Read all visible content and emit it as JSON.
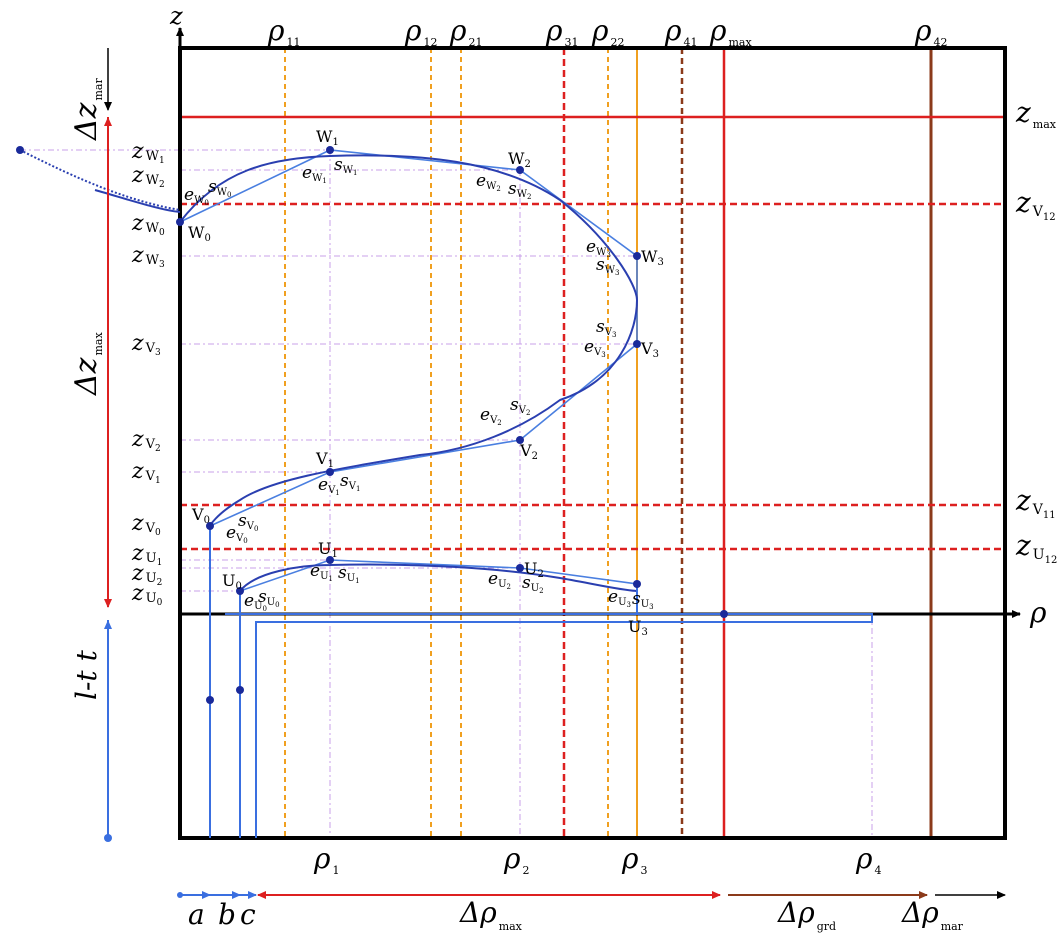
{
  "axes": {
    "z_label": "z",
    "rho_label": "ρ"
  },
  "vertical_lines": [
    {
      "id": "rho11",
      "label": "ρ",
      "sub": "11",
      "style": "dashed",
      "color": "#f0a020"
    },
    {
      "id": "rho12",
      "label": "ρ",
      "sub": "12",
      "style": "dashed",
      "color": "#f0a020"
    },
    {
      "id": "rho21",
      "label": "ρ",
      "sub": "21",
      "style": "dashed",
      "color": "#f0a020"
    },
    {
      "id": "rho31",
      "label": "ρ",
      "sub": "31",
      "style": "dashed",
      "color": "#dd2020"
    },
    {
      "id": "rho22",
      "label": "ρ",
      "sub": "22",
      "style": "dashed",
      "color": "#f0a020"
    },
    {
      "id": "rho41",
      "label": "ρ",
      "sub": "41",
      "style": "dashed",
      "color": "#8b3a1a"
    },
    {
      "id": "rhomax",
      "label": "ρ",
      "sub": "max",
      "style": "solid",
      "color": "#dd2020"
    },
    {
      "id": "rho42",
      "label": "ρ",
      "sub": "42",
      "style": "solid",
      "color": "#8b3a1a"
    }
  ],
  "horizontal_lines": [
    {
      "id": "zmax",
      "label": "z",
      "sub": "max",
      "style": "solid",
      "color": "#dd2020"
    },
    {
      "id": "zV12",
      "label": "z",
      "sub": "V",
      "subsub": "12",
      "style": "dashed",
      "color": "#dd2020"
    },
    {
      "id": "zV11",
      "label": "z",
      "sub": "V",
      "subsub": "11",
      "style": "dashed",
      "color": "#dd2020"
    },
    {
      "id": "zU12",
      "label": "z",
      "sub": "U",
      "subsub": "12",
      "style": "dashed",
      "color": "#dd2020"
    }
  ],
  "bottom_rho_labels": [
    {
      "label": "ρ",
      "sub": "1"
    },
    {
      "label": "ρ",
      "sub": "2"
    },
    {
      "label": "ρ",
      "sub": "3"
    },
    {
      "label": "ρ",
      "sub": "4"
    }
  ],
  "left_z_labels": [
    {
      "label": "z",
      "sub": "W",
      "subsub": "1"
    },
    {
      "label": "z",
      "sub": "W",
      "subsub": "2"
    },
    {
      "label": "z",
      "sub": "W",
      "subsub": "0"
    },
    {
      "label": "z",
      "sub": "W",
      "subsub": "3"
    },
    {
      "label": "z",
      "sub": "V",
      "subsub": "3"
    },
    {
      "label": "z",
      "sub": "V",
      "subsub": "2"
    },
    {
      "label": "z",
      "sub": "V",
      "subsub": "1"
    },
    {
      "label": "z",
      "sub": "V",
      "subsub": "0"
    },
    {
      "label": "z",
      "sub": "U",
      "subsub": "1"
    },
    {
      "label": "z",
      "sub": "U",
      "subsub": "2"
    },
    {
      "label": "z",
      "sub": "U",
      "subsub": "0"
    }
  ],
  "points": {
    "W": [
      "W",
      "W",
      "W",
      "W"
    ],
    "W_subs": [
      "0",
      "1",
      "2",
      "3"
    ],
    "V": [
      "V",
      "V",
      "V",
      "V"
    ],
    "V_subs": [
      "0",
      "1",
      "2",
      "3"
    ],
    "U": [
      "U",
      "U",
      "U",
      "U"
    ],
    "U_subs": [
      "0",
      "1",
      "2",
      "3"
    ]
  },
  "tangent_labels": {
    "e": "e",
    "s": "s"
  },
  "dimensions": {
    "dz_mar": {
      "label": "Δz",
      "sub": "mar"
    },
    "dz_max": {
      "label": "Δz",
      "sub": "max"
    },
    "lt": {
      "label": "l-t t"
    },
    "a": "a",
    "b": "b",
    "c": "c",
    "drho_max": {
      "label": "Δρ",
      "sub": "max"
    },
    "drho_grd": {
      "label": "Δρ",
      "sub": "grd"
    },
    "drho_mar": {
      "label": "Δρ",
      "sub": "mar"
    }
  },
  "colors": {
    "curve": "#2a3fb0",
    "polygon": "#4a7fe0",
    "frame": "#000000",
    "red": "#dd2020",
    "orange": "#f0a020",
    "brown": "#8b3a1a",
    "guide": "#c080e0",
    "blue_dim": "#3a6fe0"
  }
}
